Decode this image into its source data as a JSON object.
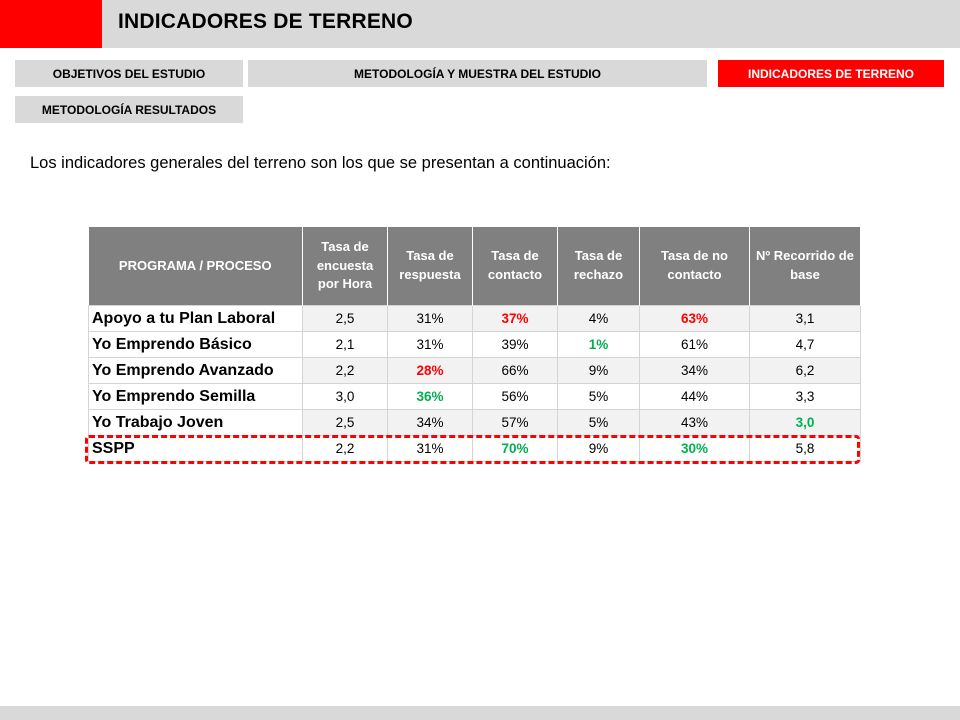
{
  "header": {
    "title": "INDICADORES DE TERRENO"
  },
  "nav": {
    "objetivos": "OBJETIVOS DEL ESTUDIO",
    "metodologia_muestra": "METODOLOGÍA Y MUESTRA DEL ESTUDIO",
    "indicadores": "INDICADORES DE TERRENO",
    "metodologia_resultados": "METODOLOGÍA RESULTADOS"
  },
  "intro_text": "Los indicadores generales del terreno son los que se presentan a continuación:",
  "table": {
    "headers": [
      "PROGRAMA / PROCESO",
      "Tasa de encuesta por Hora",
      "Tasa de respuesta",
      "Tasa de contacto",
      "Tasa de rechazo",
      "Tasa de no contacto",
      "Nº Recorrido de base"
    ],
    "rows": [
      {
        "program": "Apoyo a tu Plan Laboral",
        "cells": [
          "2,5",
          "31%",
          "37%",
          "4%",
          "63%",
          "3,1"
        ]
      },
      {
        "program": "Yo Emprendo Básico",
        "cells": [
          "2,1",
          "31%",
          "39%",
          "1%",
          "61%",
          "4,7"
        ]
      },
      {
        "program": "Yo Emprendo Avanzado",
        "cells": [
          "2,2",
          "28%",
          "66%",
          "9%",
          "34%",
          "6,2"
        ]
      },
      {
        "program": "Yo Emprendo Semilla",
        "cells": [
          "3,0",
          "36%",
          "56%",
          "5%",
          "44%",
          "3,3"
        ]
      },
      {
        "program": "Yo Trabajo Joven",
        "cells": [
          "2,5",
          "34%",
          "57%",
          "5%",
          "43%",
          "3,0"
        ]
      },
      {
        "program": "SSPP",
        "cells": [
          "2,2",
          "31%",
          "70%",
          "9%",
          "30%",
          "5,8"
        ]
      }
    ]
  },
  "colors": {
    "accent_red": "#ff0000",
    "highlight_green": "#00b050",
    "header_gray": "#808080"
  }
}
